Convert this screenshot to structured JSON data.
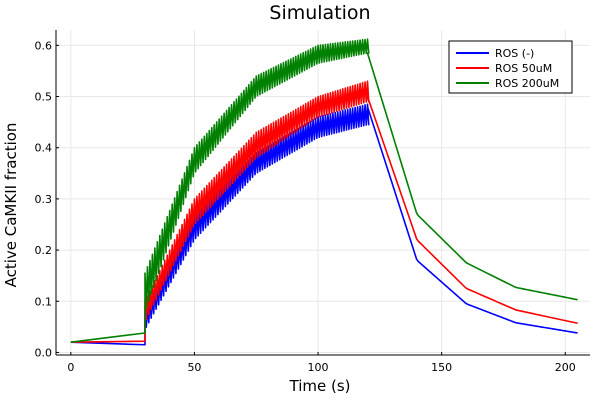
{
  "chart_data": {
    "type": "line",
    "title": "Simulation",
    "xlabel": "Time (s)",
    "ylabel": "Active CaMKII fraction",
    "xlim": [
      -6,
      210
    ],
    "ylim": [
      -0.005,
      0.63
    ],
    "xticks": [
      0,
      50,
      100,
      150,
      200
    ],
    "yticks": [
      0.0,
      0.1,
      0.2,
      0.3,
      0.4,
      0.5,
      0.6
    ],
    "xtick_labels": [
      "0",
      "50",
      "100",
      "150",
      "200"
    ],
    "ytick_labels": [
      "0.0",
      "0.1",
      "0.2",
      "0.3",
      "0.4",
      "0.5",
      "0.6"
    ],
    "grid": true,
    "legend_position": "top-right",
    "pacing": {
      "start": 30,
      "end": 120,
      "period": 1
    },
    "series": [
      {
        "name": "ROS (-)",
        "color": "#0000ff",
        "baseline_start": 0.02,
        "baseline_end": 0.015,
        "peak_low": [
          [
            30,
            0.045
          ],
          [
            50,
            0.22
          ],
          [
            75,
            0.35
          ],
          [
            100,
            0.42
          ],
          [
            120,
            0.445
          ]
        ],
        "peak_high": [
          [
            30,
            0.08
          ],
          [
            50,
            0.27
          ],
          [
            75,
            0.39
          ],
          [
            100,
            0.46
          ],
          [
            120,
            0.485
          ]
        ],
        "decay": [
          [
            120,
            0.48
          ],
          [
            140,
            0.18
          ],
          [
            160,
            0.095
          ],
          [
            180,
            0.058
          ],
          [
            205,
            0.038
          ]
        ]
      },
      {
        "name": "ROS 50uM",
        "color": "#ff0000",
        "baseline_start": 0.02,
        "baseline_end": 0.022,
        "peak_low": [
          [
            30,
            0.06
          ],
          [
            50,
            0.25
          ],
          [
            75,
            0.38
          ],
          [
            100,
            0.46
          ],
          [
            120,
            0.49
          ]
        ],
        "peak_high": [
          [
            30,
            0.1
          ],
          [
            50,
            0.3
          ],
          [
            75,
            0.43
          ],
          [
            100,
            0.5
          ],
          [
            120,
            0.53
          ]
        ],
        "decay": [
          [
            120,
            0.5
          ],
          [
            140,
            0.22
          ],
          [
            160,
            0.125
          ],
          [
            180,
            0.083
          ],
          [
            205,
            0.057
          ]
        ]
      },
      {
        "name": "ROS 200uM",
        "color": "#008000",
        "baseline_start": 0.02,
        "baseline_end": 0.038,
        "peak_low": [
          [
            30,
            0.08
          ],
          [
            50,
            0.35
          ],
          [
            75,
            0.5
          ],
          [
            100,
            0.565
          ],
          [
            120,
            0.585
          ]
        ],
        "peak_high": [
          [
            30,
            0.155
          ],
          [
            50,
            0.4
          ],
          [
            75,
            0.54
          ],
          [
            100,
            0.6
          ],
          [
            120,
            0.612
          ]
        ],
        "decay": [
          [
            120,
            0.585
          ],
          [
            140,
            0.27
          ],
          [
            160,
            0.175
          ],
          [
            180,
            0.127
          ],
          [
            205,
            0.103
          ]
        ]
      }
    ]
  }
}
